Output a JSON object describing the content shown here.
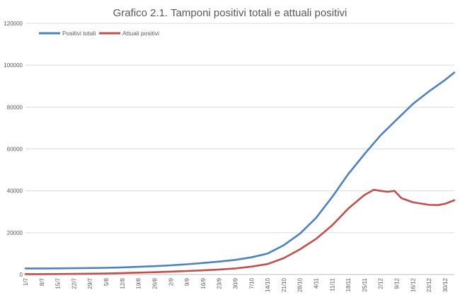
{
  "chart_data": {
    "type": "line",
    "title": "Grafico 2.1. Tamponi positivi totali e attuali positivi",
    "xlabel": "",
    "ylabel": "",
    "ylim": [
      0,
      120000
    ],
    "yticks": [
      0,
      20000,
      40000,
      60000,
      80000,
      100000,
      120000
    ],
    "grid": true,
    "legend": "top-left",
    "x_start": "1/7",
    "x_step_days": 1,
    "x_tick_labels": [
      "1/7",
      "8/7",
      "15/7",
      "22/7",
      "29/7",
      "5/8",
      "12/8",
      "19/8",
      "26/8",
      "2/9",
      "9/9",
      "16/9",
      "23/9",
      "30/9",
      "7/10",
      "14/10",
      "21/10",
      "28/10",
      "4/11",
      "11/11",
      "18/11",
      "25/11",
      "2/12",
      "9/12",
      "16/12",
      "23/12",
      "30/12"
    ],
    "series": [
      {
        "name": "Positivi totali",
        "color": "#4f81bd",
        "points": [
          [
            "1/7",
            2900
          ],
          [
            "8/7",
            2900
          ],
          [
            "15/7",
            2950
          ],
          [
            "22/7",
            3000
          ],
          [
            "29/7",
            3100
          ],
          [
            "5/8",
            3200
          ],
          [
            "12/8",
            3400
          ],
          [
            "19/8",
            3700
          ],
          [
            "26/8",
            4000
          ],
          [
            "2/9",
            4400
          ],
          [
            "9/9",
            4900
          ],
          [
            "16/9",
            5500
          ],
          [
            "23/9",
            6200
          ],
          [
            "30/9",
            7000
          ],
          [
            "7/10",
            8200
          ],
          [
            "14/10",
            10000
          ],
          [
            "21/10",
            14000
          ],
          [
            "28/10",
            19500
          ],
          [
            "4/11",
            27000
          ],
          [
            "11/11",
            37000
          ],
          [
            "18/11",
            48000
          ],
          [
            "25/11",
            57500
          ],
          [
            "2/12",
            66500
          ],
          [
            "9/12",
            74000
          ],
          [
            "16/12",
            81500
          ],
          [
            "23/12",
            87500
          ],
          [
            "30/12",
            93000
          ],
          [
            "3/1",
            96500
          ]
        ]
      },
      {
        "name": "Attuali positivi",
        "color": "#c0504d",
        "points": [
          [
            "1/7",
            200
          ],
          [
            "8/7",
            200
          ],
          [
            "15/7",
            250
          ],
          [
            "22/7",
            300
          ],
          [
            "29/7",
            400
          ],
          [
            "5/8",
            500
          ],
          [
            "12/8",
            700
          ],
          [
            "19/8",
            900
          ],
          [
            "26/8",
            1100
          ],
          [
            "2/9",
            1400
          ],
          [
            "9/9",
            1700
          ],
          [
            "16/9",
            2000
          ],
          [
            "23/9",
            2400
          ],
          [
            "30/9",
            2900
          ],
          [
            "7/10",
            3800
          ],
          [
            "14/10",
            5000
          ],
          [
            "21/10",
            7800
          ],
          [
            "28/10",
            12000
          ],
          [
            "4/11",
            17000
          ],
          [
            "11/11",
            23500
          ],
          [
            "18/11",
            31500
          ],
          [
            "25/11",
            38000
          ],
          [
            "29/11",
            40500
          ],
          [
            "2/12",
            40000
          ],
          [
            "5/12",
            39500
          ],
          [
            "8/12",
            40000
          ],
          [
            "11/12",
            36500
          ],
          [
            "16/12",
            34500
          ],
          [
            "19/12",
            34000
          ],
          [
            "23/12",
            33300
          ],
          [
            "27/12",
            33200
          ],
          [
            "30/12",
            33800
          ],
          [
            "3/1",
            35500
          ]
        ]
      }
    ]
  }
}
